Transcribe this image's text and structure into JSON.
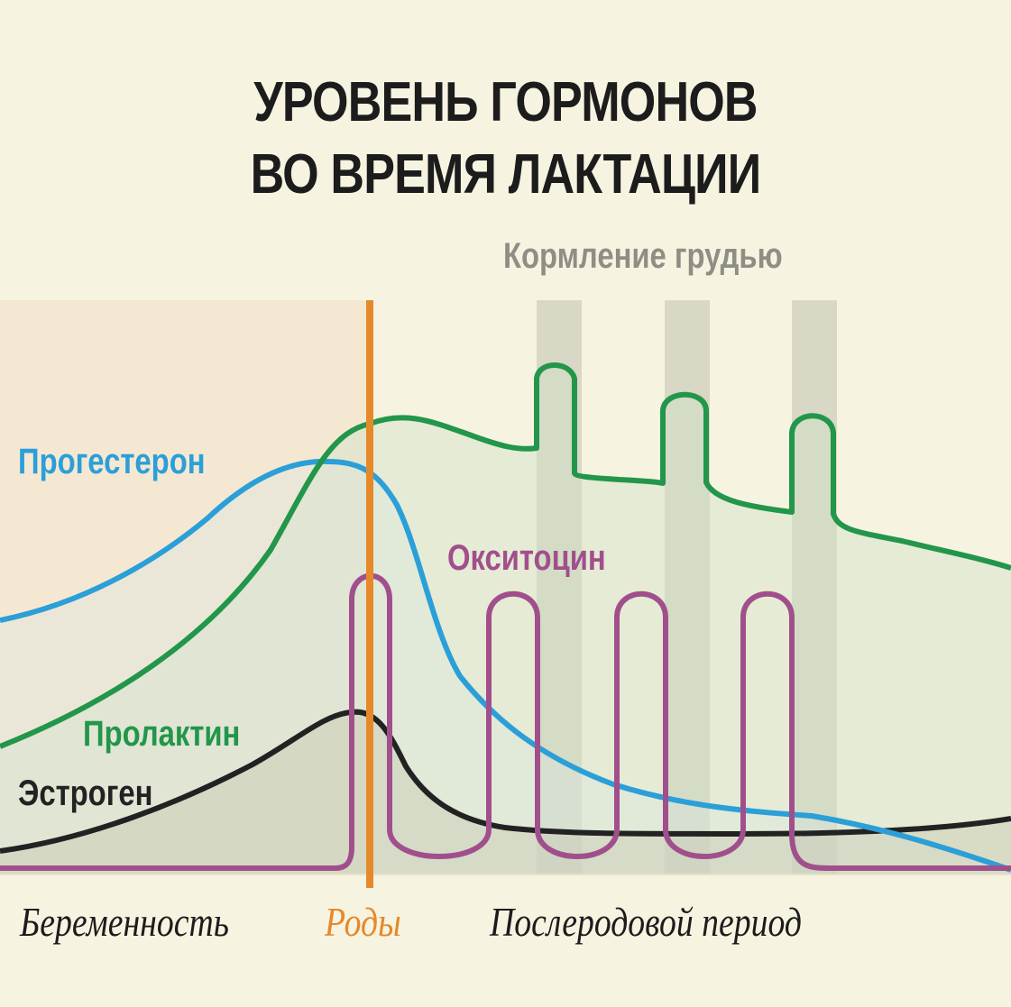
{
  "title": {
    "line1": "УРОВЕНЬ ГОРМОНОВ",
    "line2": "ВО ВРЕМЯ ЛАКТАЦИИ"
  },
  "annotations": {
    "breastfeeding": "Кормление грудью"
  },
  "hormones": {
    "progesterone": {
      "label": "Прогестерон",
      "color": "#2b9fd8"
    },
    "prolactin": {
      "label": "Пролактин",
      "color": "#22964a"
    },
    "oxytocin": {
      "label": "Окситоцин",
      "color": "#a14f8c"
    },
    "estrogen": {
      "label": "Эстроген",
      "color": "#222222"
    }
  },
  "phases": {
    "pregnancy": "Беременность",
    "birth": "Роды",
    "postpartum": "Послеродовой период"
  },
  "colors": {
    "background": "#f7f3e1",
    "pregnancy_zone": "#f5e8d3",
    "feeding_bands": "#d9d8c6",
    "birth_line": "#e5892a"
  }
}
